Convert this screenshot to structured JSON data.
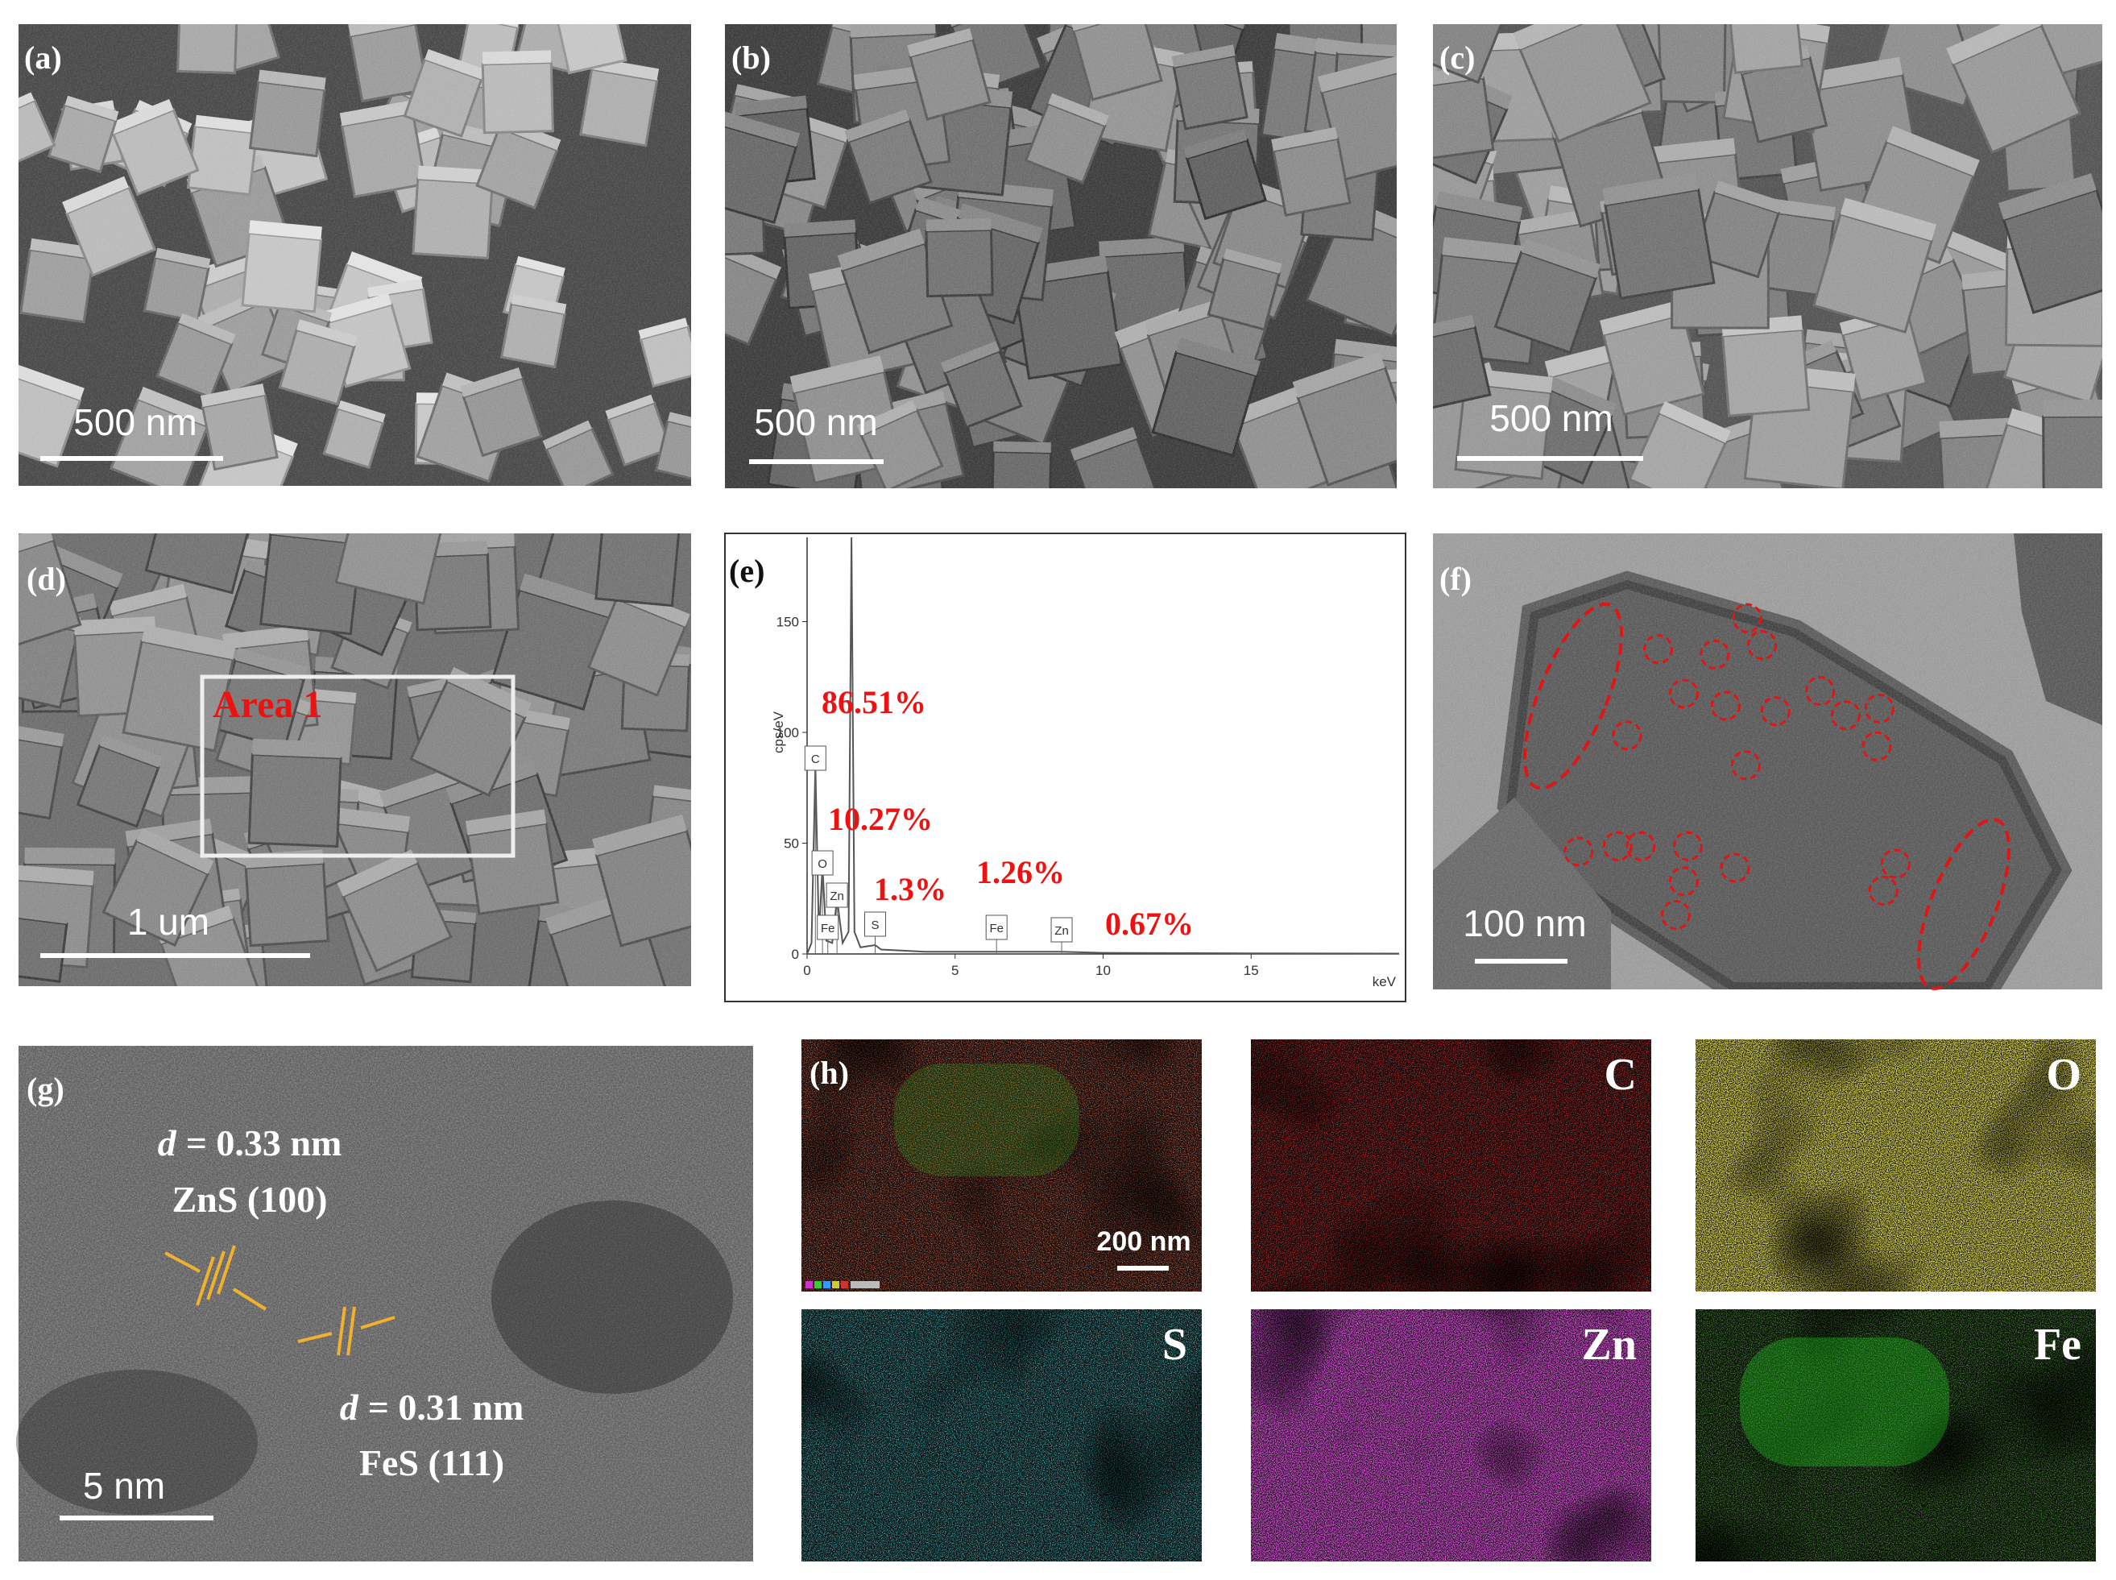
{
  "panels": [
    {
      "label": "(a)",
      "scale_bar": "500 nm"
    },
    {
      "label": "(b)",
      "scale_bar": "500 nm"
    },
    {
      "label": "(c)",
      "scale_bar": "500 nm"
    },
    {
      "label": "(d)",
      "scale_bar": "1 um",
      "region": "Area 1"
    },
    {
      "label": "(e)"
    },
    {
      "label": "(f)",
      "scale_bar": "100 nm"
    },
    {
      "label": "(g)",
      "scale_bar": "5 nm",
      "fringes": [
        {
          "variable": "d",
          "spacing": "= 0.33 nm",
          "plane": "ZnS (100)"
        },
        {
          "variable": "d",
          "spacing": "= 0.31 nm",
          "plane": "FeS (111)"
        }
      ]
    },
    {
      "label": "(h)",
      "scale_bar": "200 nm",
      "elements": [
        "C",
        "O",
        "S",
        "Zn",
        "Fe"
      ]
    }
  ],
  "chart_data": {
    "type": "line",
    "y_label": "cps/eV",
    "x_label": "keV",
    "x": [
      0,
      0.15,
      0.28,
      0.4,
      0.52,
      0.65,
      0.85,
      1.01,
      1.2,
      1.4,
      1.5,
      1.6,
      1.8,
      2.3,
      2.5,
      4,
      6.4,
      8.6,
      10,
      15,
      20
    ],
    "values": [
      0,
      5,
      85,
      8,
      40,
      6,
      5,
      25,
      5,
      10,
      188,
      10,
      3,
      4,
      2,
      1,
      1,
      1,
      0.5,
      0.3,
      0.2
    ],
    "color": "#555555",
    "xlim": [
      0,
      20
    ],
    "ylim": [
      0,
      188
    ],
    "xticks": [
      0,
      5,
      10,
      15
    ],
    "yticks": [
      0,
      50,
      100,
      150
    ],
    "peak_labels": [
      {
        "text": "C",
        "x": 0.28
      },
      {
        "text": "O",
        "x": 0.52
      },
      {
        "text": "Zn",
        "x": 1.01
      },
      {
        "text": "Fe",
        "x": 0.7
      },
      {
        "text": "S",
        "x": 2.3
      },
      {
        "text": "Fe",
        "x": 6.4
      },
      {
        "text": "Zn",
        "x": 8.6
      }
    ],
    "annotations": [
      "86.51%",
      "10.27%",
      "1.3%",
      "1.26%",
      "0.67%"
    ]
  }
}
